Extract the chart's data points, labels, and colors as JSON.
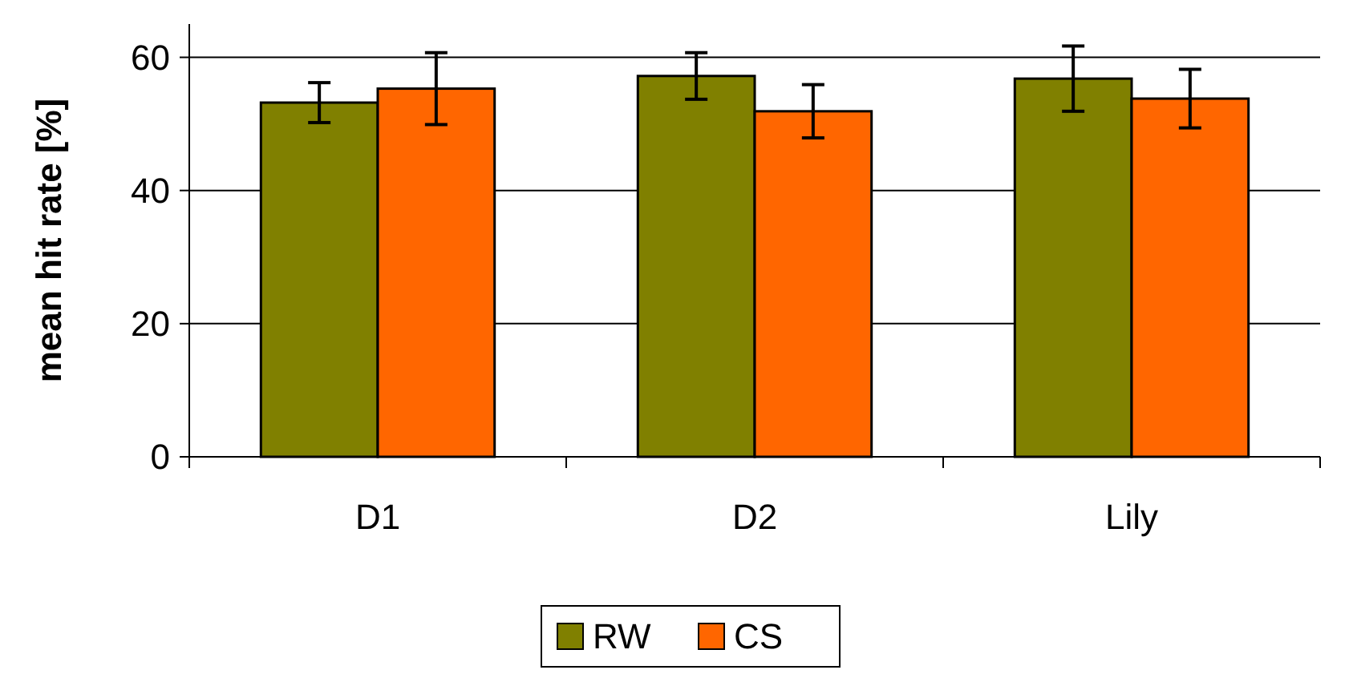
{
  "chart_data": {
    "type": "bar",
    "ylabel": "mean hit rate [%]",
    "categories": [
      "D1",
      "D2",
      "Lily"
    ],
    "series": [
      {
        "name": "RW",
        "color": "#808000",
        "values": [
          53.2,
          57.2,
          56.8
        ],
        "errors": [
          3,
          3.5,
          4.9
        ]
      },
      {
        "name": "CS",
        "color": "#ff6600",
        "values": [
          55.3,
          51.9,
          53.8
        ],
        "errors": [
          5.4,
          4,
          4.4
        ]
      }
    ],
    "ylim": [
      0,
      65
    ],
    "yticks": [
      0,
      20,
      40,
      60
    ],
    "grid": "y",
    "legend": "bottom"
  }
}
